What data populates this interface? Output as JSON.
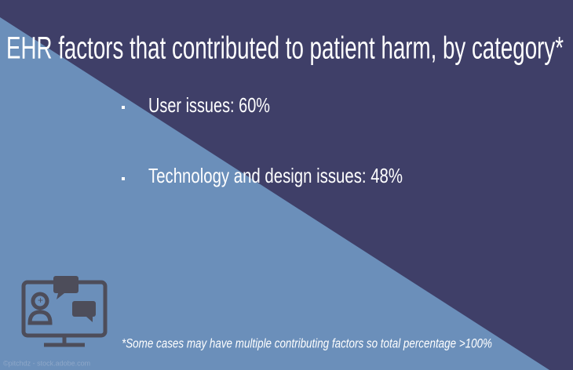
{
  "title": "EHR factors that contributed to patient harm, by category*",
  "bullets": [
    "User issues: 60%",
    "Technology and design issues: 48%"
  ],
  "footnote": "*Some cases may have multiple contributing factors so total percentage >100%",
  "credit": "©pitchdz - stock.adobe.com"
}
